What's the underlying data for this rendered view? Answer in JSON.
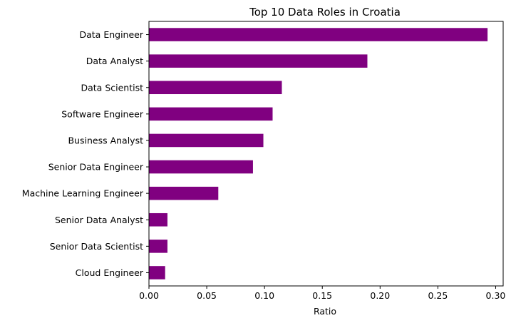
{
  "chart_data": {
    "type": "bar",
    "orientation": "horizontal",
    "title": "Top 10 Data Roles in Croatia",
    "xlabel": "Ratio",
    "ylabel": "",
    "categories": [
      "Data Engineer",
      "Data Analyst",
      "Data Scientist",
      "Software Engineer",
      "Business Analyst",
      "Senior Data Engineer",
      "Machine Learning Engineer",
      "Senior Data Analyst",
      "Senior Data Scientist",
      "Cloud Engineer"
    ],
    "values": [
      0.293,
      0.189,
      0.115,
      0.107,
      0.099,
      0.09,
      0.06,
      0.016,
      0.016,
      0.014
    ],
    "xlim": [
      0,
      0.3065
    ],
    "xticks": [
      0.0,
      0.05,
      0.1,
      0.15,
      0.2,
      0.25,
      0.3
    ],
    "xtick_labels": [
      "0.00",
      "0.05",
      "0.10",
      "0.15",
      "0.20",
      "0.25",
      "0.30"
    ],
    "bar_color": "#800080",
    "grid": false,
    "legend": "none"
  }
}
